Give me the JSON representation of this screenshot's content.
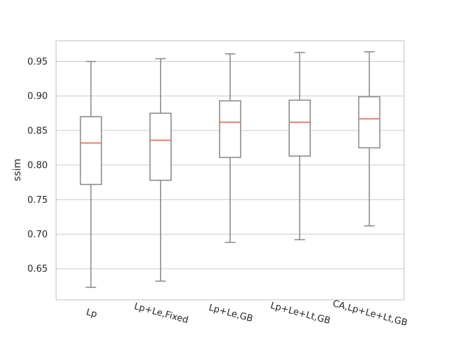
{
  "chart_data": {
    "type": "box",
    "title": "",
    "xlabel": "",
    "ylabel": "ssim",
    "ylim": [
      0.605,
      0.98
    ],
    "yticks": [
      0.65,
      0.7,
      0.75,
      0.8,
      0.85,
      0.9,
      0.95
    ],
    "ytick_labels": [
      "0.65",
      "0.70",
      "0.75",
      "0.80",
      "0.85",
      "0.90",
      "0.95"
    ],
    "grid": "horizontal",
    "categories": [
      "Lp",
      "Lp+Le,Fixed",
      "Lp+Le,GB",
      "Lp+Le+Lt,GB",
      "CA,Lp+Le+Lt,GB"
    ],
    "boxes": [
      {
        "whisker_low": 0.623,
        "q1": 0.772,
        "median": 0.832,
        "q3": 0.87,
        "whisker_high": 0.95
      },
      {
        "whisker_low": 0.632,
        "q1": 0.778,
        "median": 0.836,
        "q3": 0.875,
        "whisker_high": 0.954
      },
      {
        "whisker_low": 0.688,
        "q1": 0.811,
        "median": 0.862,
        "q3": 0.893,
        "whisker_high": 0.961
      },
      {
        "whisker_low": 0.692,
        "q1": 0.813,
        "median": 0.862,
        "q3": 0.894,
        "whisker_high": 0.963
      },
      {
        "whisker_low": 0.712,
        "q1": 0.825,
        "median": 0.867,
        "q3": 0.899,
        "whisker_high": 0.964
      }
    ],
    "colors": {
      "box": "#8c8c8c",
      "median": "#e8826e",
      "grid": "#cccccc",
      "frame": "#cccccc"
    }
  }
}
